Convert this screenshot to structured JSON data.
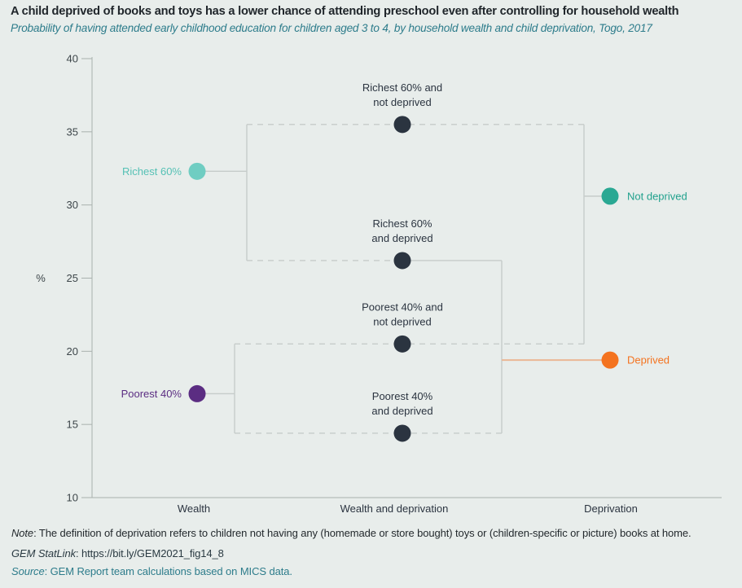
{
  "header": {
    "title": "A child deprived of books and toys has a lower chance of attending preschool even after controlling for household wealth",
    "subtitle": "Probability of having attended early childhood education for children aged 3 to 4, by household wealth and child deprivation, Togo, 2017"
  },
  "chart_data": {
    "type": "scatter",
    "ylabel": "%",
    "ylim": [
      10,
      40
    ],
    "yticks": [
      40,
      35,
      30,
      25,
      20,
      15,
      10
    ],
    "grid": false,
    "categories": [
      "Wealth",
      "Wealth and deprivation",
      "Deprivation"
    ],
    "points": [
      {
        "id": "richest-60",
        "category": "Wealth",
        "value": 32.3,
        "label": "Richest 60%",
        "color": "#6fcdc2",
        "label_color": "#56c1b5",
        "label_pos": "left"
      },
      {
        "id": "poorest-40",
        "category": "Wealth",
        "value": 17.1,
        "label": "Poorest 40%",
        "color": "#5b2d82",
        "label_color": "#5b2d82",
        "label_pos": "left"
      },
      {
        "id": "richest-60-not-deprived",
        "category": "Wealth and deprivation",
        "value": 35.5,
        "label": "Richest 60% and\nnot deprived",
        "color": "#2b3440",
        "label_color": "#2b3440",
        "label_pos": "above"
      },
      {
        "id": "richest-60-deprived",
        "category": "Wealth and deprivation",
        "value": 26.2,
        "label": "Richest 60%\nand deprived",
        "color": "#2b3440",
        "label_color": "#2b3440",
        "label_pos": "above"
      },
      {
        "id": "poorest-40-not-deprived",
        "category": "Wealth and deprivation",
        "value": 20.5,
        "label": "Poorest 40% and\nnot deprived",
        "color": "#2b3440",
        "label_color": "#2b3440",
        "label_pos": "above"
      },
      {
        "id": "poorest-40-deprived",
        "category": "Wealth and deprivation",
        "value": 14.4,
        "label": "Poorest 40%\nand deprived",
        "color": "#2b3440",
        "label_color": "#2b3440",
        "label_pos": "above"
      },
      {
        "id": "not-deprived",
        "category": "Deprivation",
        "value": 30.6,
        "label": "Not deprived",
        "color": "#2aa893",
        "label_color": "#21a18d",
        "label_pos": "right"
      },
      {
        "id": "deprived",
        "category": "Deprivation",
        "value": 19.4,
        "label": "Deprived",
        "color": "#f4731f",
        "label_color": "#f4731f",
        "label_pos": "right"
      }
    ],
    "links": [
      {
        "group": "richest-60",
        "children": [
          "richest-60-not-deprived",
          "richest-60-deprived"
        ],
        "stem_style": "solid"
      },
      {
        "group": "poorest-40",
        "children": [
          "poorest-40-not-deprived",
          "poorest-40-deprived"
        ],
        "stem_style": "solid"
      },
      {
        "group": "not-deprived",
        "children": [
          "richest-60-not-deprived",
          "poorest-40-not-deprived"
        ],
        "stem_style": "solid"
      },
      {
        "group": "deprived",
        "children": [
          "richest-60-deprived",
          "poorest-40-deprived"
        ],
        "stem_style": "orange",
        "child_styles": {
          "richest-60-deprived": "solid",
          "poorest-40-deprived": "dashed"
        }
      }
    ],
    "colors": {
      "background": "#e8edeb",
      "line": "#c6ccca",
      "orange_line": "#eab795",
      "axis": "#a9b1ae",
      "dark_point": "#2b3440"
    }
  },
  "footnotes": {
    "note_prefix": "Note",
    "note_text": ": The definition of deprivation refers to children not having any (homemade or store bought) toys or (children-specific or picture) books at home.",
    "statlink_prefix": "GEM StatLink",
    "statlink_url": " https://bit.ly/GEM2021_fig14_8",
    "statlink_sep": ":",
    "source_prefix": "Source",
    "source_text": ": GEM Report team calculations based on MICS data."
  }
}
